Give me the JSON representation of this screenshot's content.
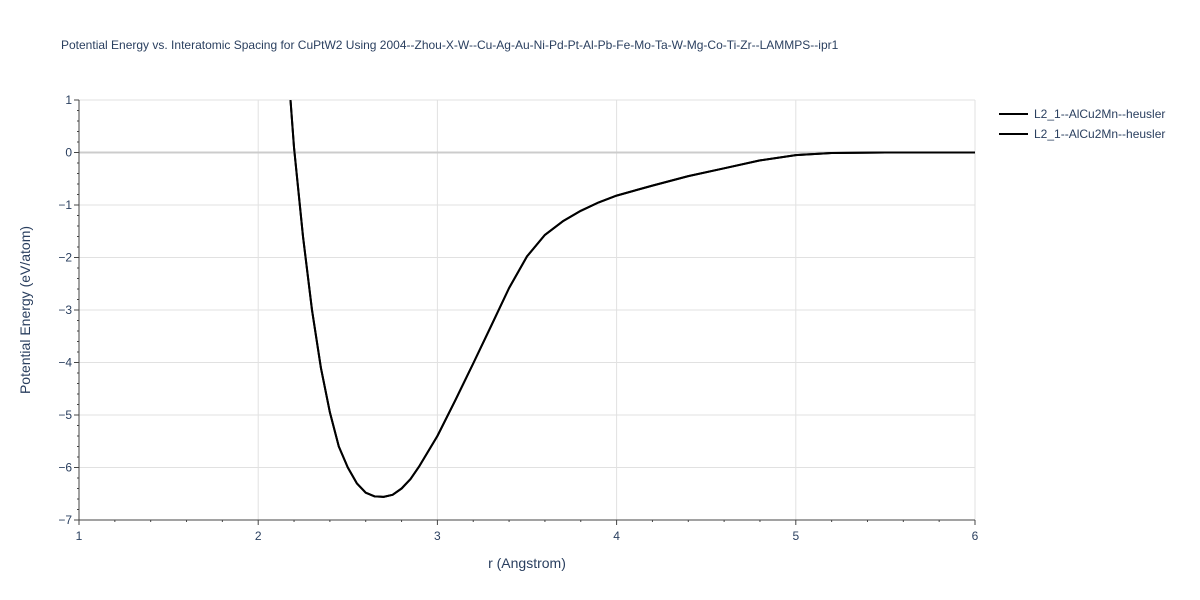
{
  "chart_data": {
    "type": "line",
    "title": "Potential Energy vs. Interatomic Spacing for CuPtW2 Using 2004--Zhou-X-W--Cu-Ag-Au-Ni-Pd-Pt-Al-Pb-Fe-Mo-Ta-W-Mg-Co-Ti-Zr--LAMMPS--ipr1",
    "xlabel": "r (Angstrom)",
    "ylabel": "Potential Energy (eV/atom)",
    "xlim": [
      1,
      6
    ],
    "ylim": [
      -7,
      1
    ],
    "x_ticks": [
      1,
      2,
      3,
      4,
      5,
      6
    ],
    "y_ticks": [
      1,
      0,
      -1,
      -2,
      -3,
      -4,
      -5,
      -6,
      -7
    ],
    "x_tick_labels": [
      "1",
      "2",
      "3",
      "4",
      "5",
      "6"
    ],
    "y_tick_labels": [
      "1",
      "0",
      "−1",
      "−2",
      "−3",
      "−4",
      "−5",
      "−6",
      "−7"
    ],
    "grid": true,
    "legend_position": "top-right",
    "series": [
      {
        "name": "L2_1--AlCu2Mn--heusler",
        "color": "#000000",
        "x": [
          2.18,
          2.2,
          2.25,
          2.3,
          2.35,
          2.4,
          2.45,
          2.5,
          2.55,
          2.6,
          2.65,
          2.7,
          2.75,
          2.8,
          2.85,
          2.9,
          3.0,
          3.1,
          3.2,
          3.3,
          3.4,
          3.5,
          3.6,
          3.7,
          3.8,
          3.9,
          4.0,
          4.2,
          4.4,
          4.6,
          4.8,
          5.0,
          5.2,
          5.5,
          6.0
        ],
        "y": [
          1.0,
          0.1,
          -1.6,
          -3.0,
          -4.1,
          -4.95,
          -5.6,
          -6.0,
          -6.3,
          -6.48,
          -6.55,
          -6.56,
          -6.52,
          -6.4,
          -6.22,
          -5.97,
          -5.4,
          -4.72,
          -4.02,
          -3.3,
          -2.58,
          -1.98,
          -1.57,
          -1.31,
          -1.11,
          -0.95,
          -0.82,
          -0.63,
          -0.45,
          -0.3,
          -0.15,
          -0.05,
          -0.01,
          0.0,
          0.0
        ]
      },
      {
        "name": "L2_1--AlCu2Mn--heusler",
        "color": "#000000",
        "x": [
          2.18,
          2.2,
          2.25,
          2.3,
          2.35,
          2.4,
          2.45,
          2.5,
          2.55,
          2.6,
          2.65,
          2.7,
          2.75,
          2.8,
          2.85,
          2.9,
          3.0,
          3.1,
          3.2,
          3.3,
          3.4,
          3.5,
          3.6,
          3.7,
          3.8,
          3.9,
          4.0,
          4.2,
          4.4,
          4.6,
          4.8,
          5.0,
          5.2,
          5.5,
          6.0
        ],
        "y": [
          1.0,
          0.1,
          -1.6,
          -3.0,
          -4.1,
          -4.95,
          -5.6,
          -6.0,
          -6.3,
          -6.48,
          -6.55,
          -6.56,
          -6.52,
          -6.4,
          -6.22,
          -5.97,
          -5.4,
          -4.72,
          -4.02,
          -3.3,
          -2.58,
          -1.98,
          -1.57,
          -1.31,
          -1.11,
          -0.95,
          -0.82,
          -0.63,
          -0.45,
          -0.3,
          -0.15,
          -0.05,
          -0.01,
          0.0,
          0.0
        ]
      }
    ]
  }
}
